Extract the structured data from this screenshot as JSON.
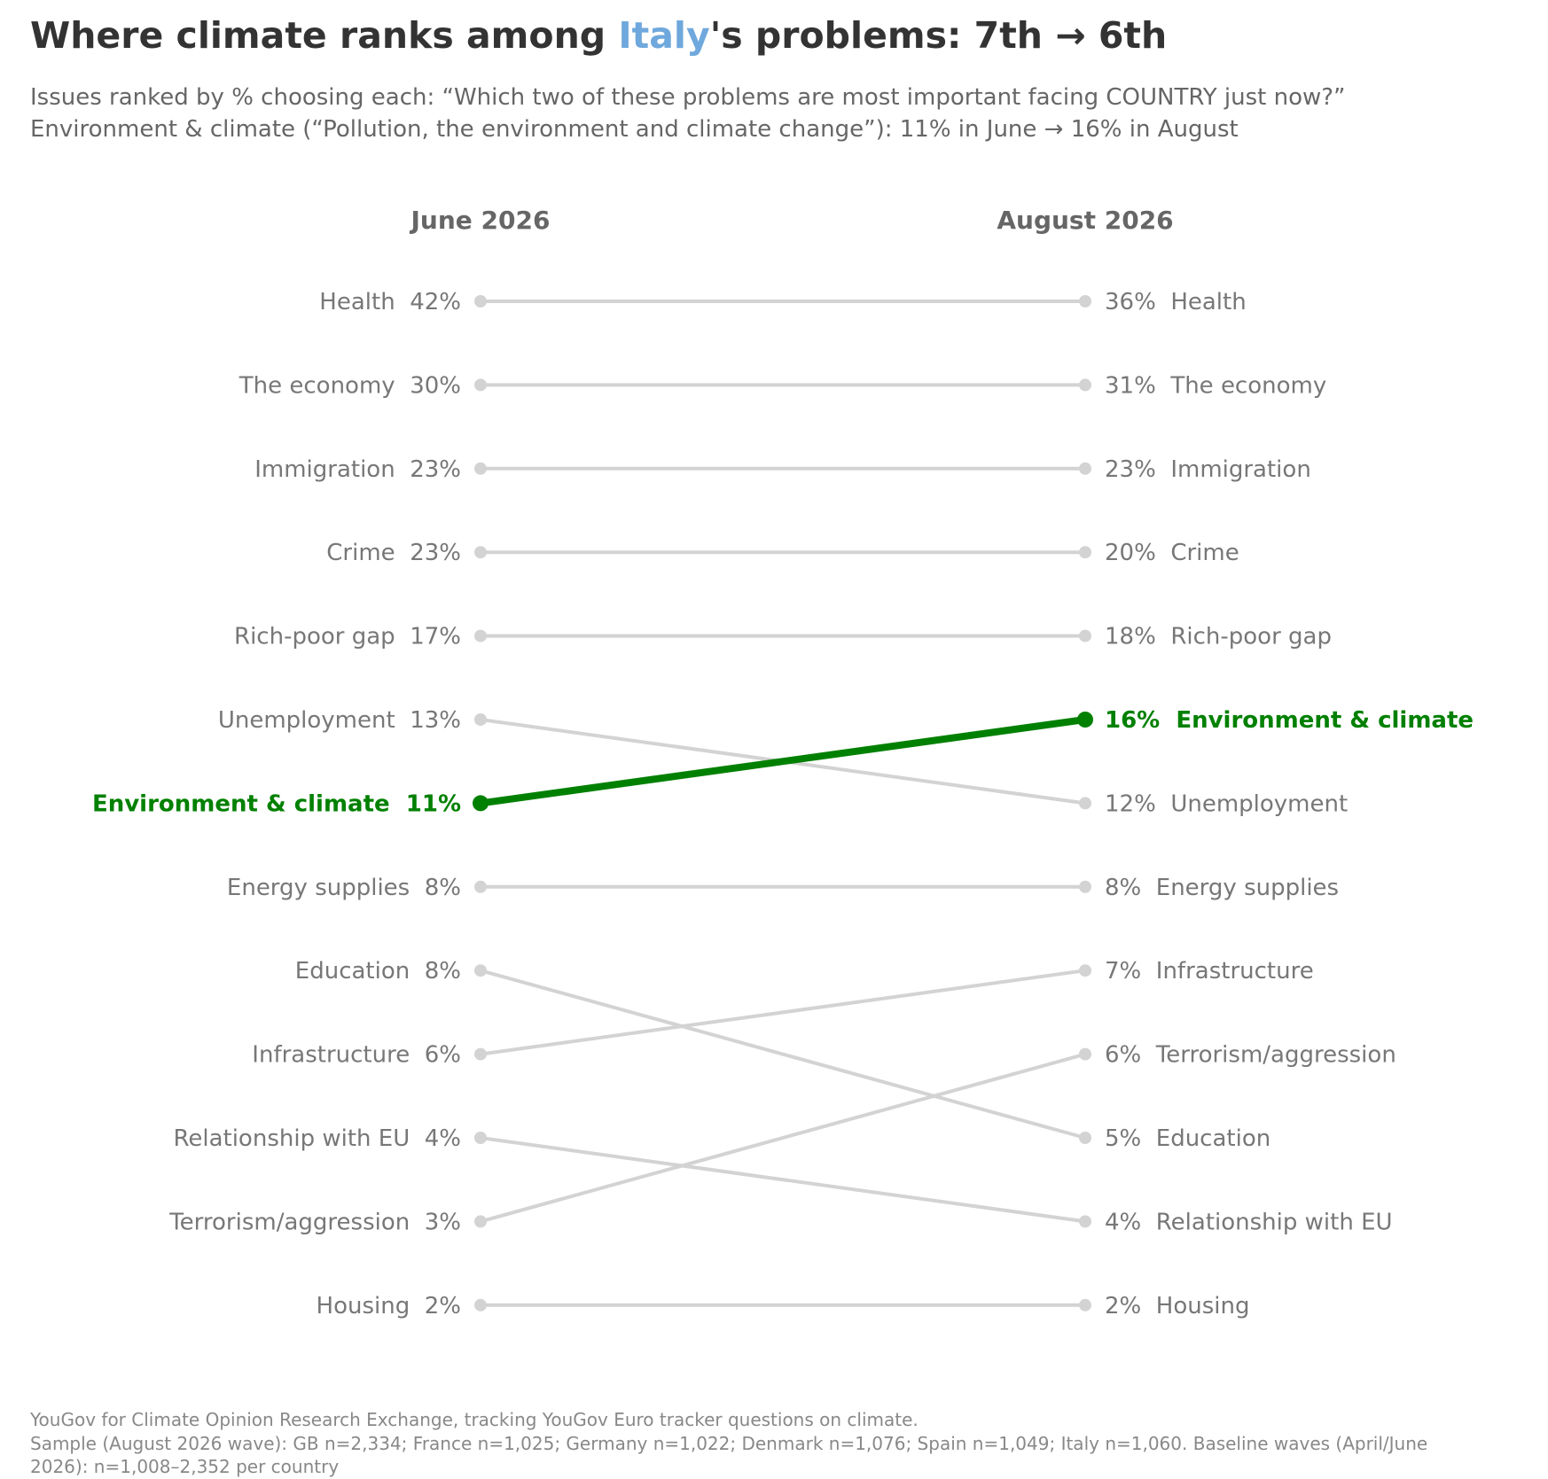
{
  "header": {
    "title_prefix": "Where climate ranks among ",
    "title_country": "Italy",
    "title_suffix": "'s problems: 7th → 6th",
    "subtitle_line1": "Issues ranked by % choosing each: “Which two of these problems are most important facing COUNTRY just now?”",
    "subtitle_line2": "Environment & climate (“Pollution, the environment and climate change”): 11% in June → 16% in August"
  },
  "footer": {
    "line1": "YouGov for Climate Opinion Research Exchange, tracking YouGov Euro tracker questions on climate.",
    "line2": "Sample (August 2026 wave): GB n=2,334; France n=1,025; Germany n=1,022; Denmark n=1,076; Spain n=1,049; Italy n=1,060. Baseline waves (April/June",
    "line3": "2026): n=1,008–2,352 per country"
  },
  "colors": {
    "highlight": "#008000",
    "muted_line": "#d3d3d3",
    "label_text": "#777777",
    "column_header": "#666666",
    "country": "#6fa8dc"
  },
  "chart_data": {
    "type": "slope",
    "columns": [
      "June 2026",
      "August 2026"
    ],
    "highlight": "Environment & climate",
    "left": [
      {
        "label": "Health",
        "value": 42
      },
      {
        "label": "The economy",
        "value": 30
      },
      {
        "label": "Immigration",
        "value": 23
      },
      {
        "label": "Crime",
        "value": 23
      },
      {
        "label": "Rich-poor gap",
        "value": 17
      },
      {
        "label": "Unemployment",
        "value": 13
      },
      {
        "label": "Environment & climate",
        "value": 11
      },
      {
        "label": "Energy supplies",
        "value": 8
      },
      {
        "label": "Education",
        "value": 8
      },
      {
        "label": "Infrastructure",
        "value": 6
      },
      {
        "label": "Relationship with EU",
        "value": 4
      },
      {
        "label": "Terrorism/aggression",
        "value": 3
      },
      {
        "label": "Housing",
        "value": 2
      }
    ],
    "right": [
      {
        "label": "Health",
        "value": 36
      },
      {
        "label": "The economy",
        "value": 31
      },
      {
        "label": "Immigration",
        "value": 23
      },
      {
        "label": "Crime",
        "value": 20
      },
      {
        "label": "Rich-poor gap",
        "value": 18
      },
      {
        "label": "Environment & climate",
        "value": 16
      },
      {
        "label": "Unemployment",
        "value": 12
      },
      {
        "label": "Energy supplies",
        "value": 8
      },
      {
        "label": "Infrastructure",
        "value": 7
      },
      {
        "label": "Terrorism/aggression",
        "value": 6
      },
      {
        "label": "Education",
        "value": 5
      },
      {
        "label": "Relationship with EU",
        "value": 4
      },
      {
        "label": "Housing",
        "value": 2
      }
    ]
  }
}
